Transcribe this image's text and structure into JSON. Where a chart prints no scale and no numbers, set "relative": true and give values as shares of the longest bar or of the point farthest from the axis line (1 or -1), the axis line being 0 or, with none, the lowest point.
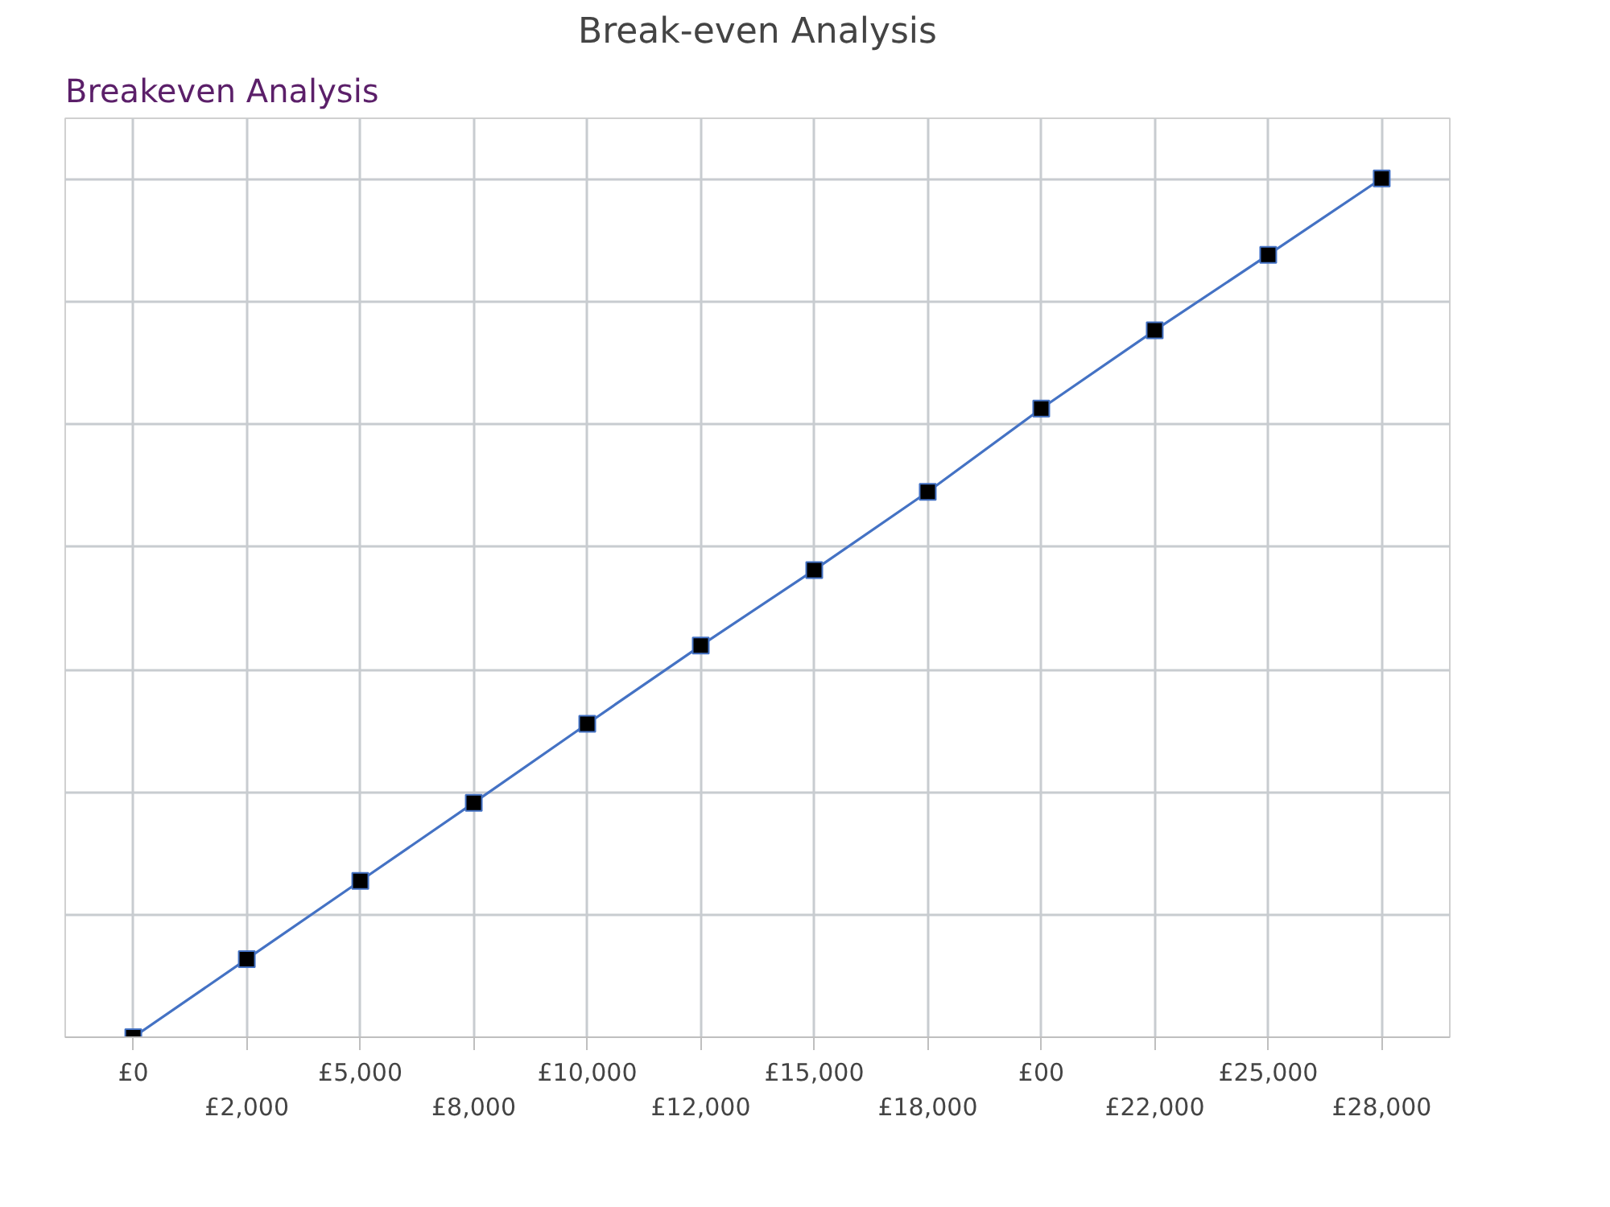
{
  "chart_data": {
    "type": "line",
    "title": "Break-even Analysis",
    "relative": true,
    "annotations": [
      "Breakeven Analysis"
    ],
    "categories": [
      "£0",
      "£2,000",
      "£5,000",
      "£8,000",
      "£10,000",
      "£12,000",
      "£15,000",
      "£18,000",
      "£00",
      "£22,000",
      "£25,000",
      "£28,000"
    ],
    "series": [
      {
        "color": "#4472c4",
        "values": [
          0,
          0.091,
          0.182,
          0.273,
          0.365,
          0.456,
          0.544,
          0.635,
          0.732,
          0.823,
          0.911,
          1
        ]
      }
    ],
    "marker": "square",
    "line_style": "solid",
    "grid": true
  }
}
